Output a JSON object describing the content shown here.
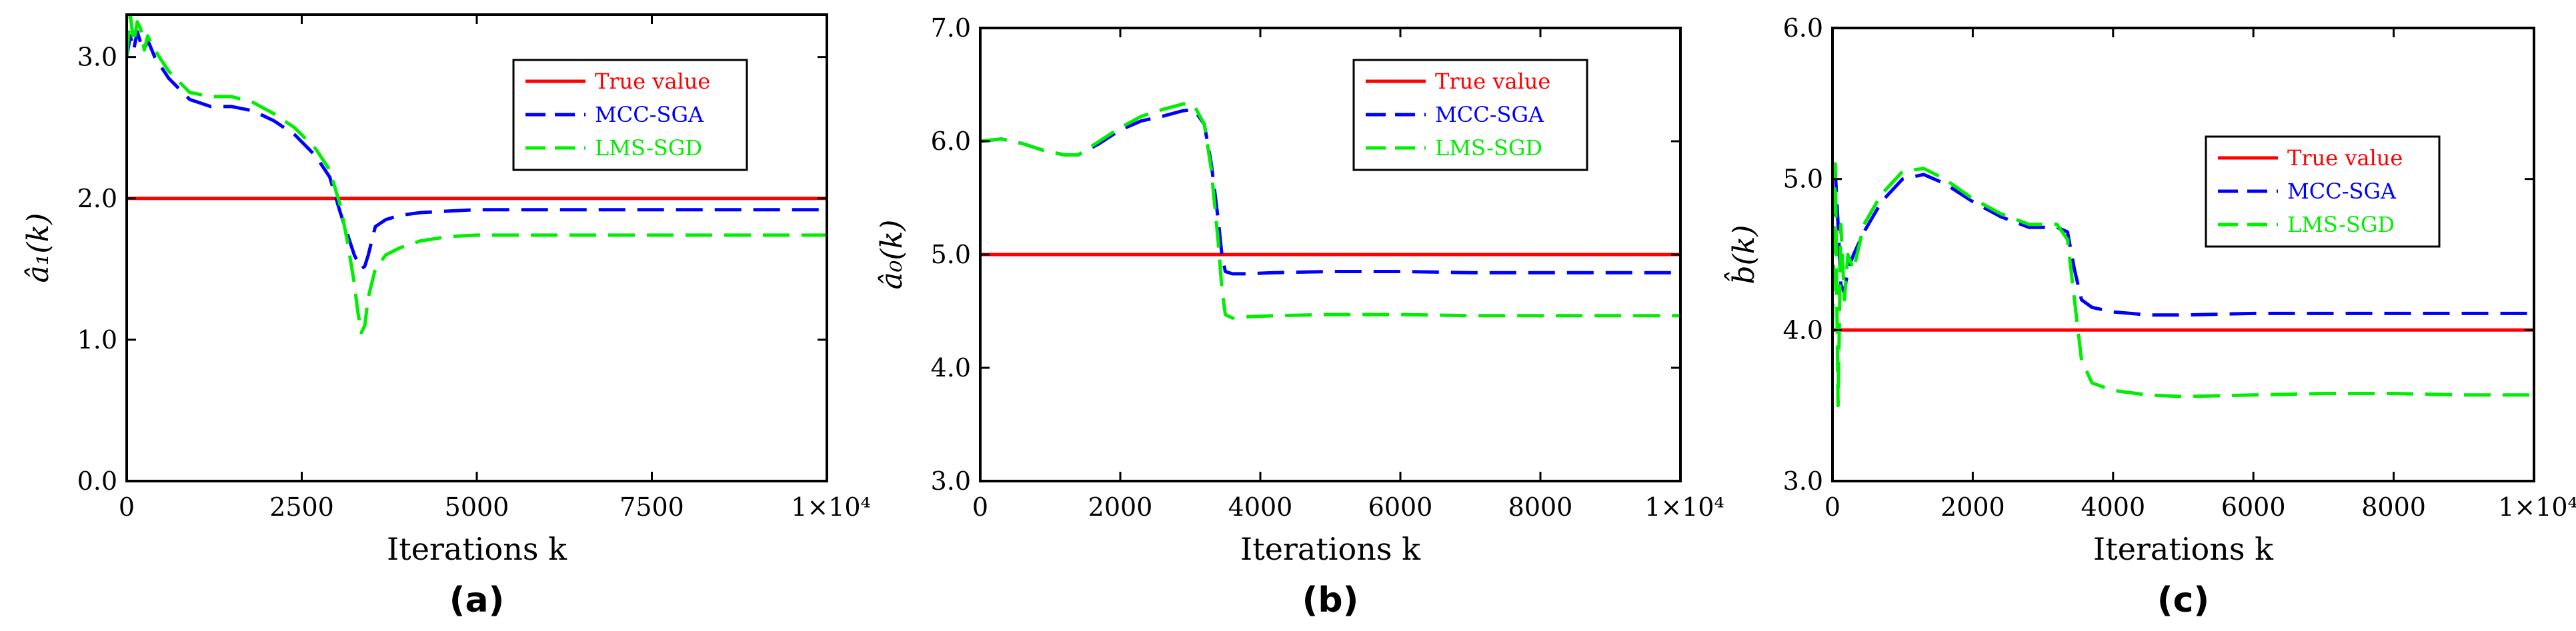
{
  "chart_data": [
    {
      "type": "line",
      "panel_label": "(a)",
      "xlabel": "Iterations k",
      "ylabel": "â₁(k)",
      "xlim": [
        0,
        10000
      ],
      "ylim": [
        0,
        3.3
      ],
      "xticks": [
        0,
        2500,
        5000,
        7500,
        10000
      ],
      "xtick_labels": [
        "0",
        "2500",
        "5000",
        "7500",
        "1×10⁴"
      ],
      "yticks": [
        0,
        1,
        2,
        3
      ],
      "ytick_labels": [
        "0.0",
        "1.0",
        "2.0",
        "3.0"
      ],
      "legend_position": "top-right",
      "series": [
        {
          "name": "True value",
          "color": "#ff0000",
          "dash": "solid",
          "x": [
            0,
            10000
          ],
          "y": [
            2.0,
            2.0
          ]
        },
        {
          "name": "MCC-SGA",
          "color": "#0000ff",
          "dash": "dashed",
          "x": [
            0,
            50,
            100,
            150,
            200,
            250,
            300,
            400,
            600,
            900,
            1200,
            1500,
            1800,
            2100,
            2400,
            2700,
            2900,
            3050,
            3150,
            3250,
            3300,
            3350,
            3400,
            3450,
            3550,
            3700,
            3900,
            4200,
            4600,
            5000,
            6000,
            7000,
            8000,
            9000,
            10000
          ],
          "y": [
            3.0,
            3.15,
            3.05,
            3.18,
            3.1,
            3.05,
            3.12,
            3.0,
            2.85,
            2.7,
            2.65,
            2.65,
            2.62,
            2.55,
            2.45,
            2.3,
            2.15,
            1.9,
            1.75,
            1.6,
            1.55,
            1.5,
            1.52,
            1.6,
            1.8,
            1.85,
            1.88,
            1.9,
            1.91,
            1.92,
            1.92,
            1.92,
            1.92,
            1.92,
            1.92
          ]
        },
        {
          "name": "LMS-SGD",
          "color": "#00ee00",
          "dash": "dashed",
          "x": [
            0,
            50,
            100,
            150,
            200,
            250,
            300,
            400,
            600,
            900,
            1200,
            1500,
            1800,
            2100,
            2400,
            2700,
            2900,
            3050,
            3150,
            3250,
            3300,
            3350,
            3400,
            3450,
            3550,
            3700,
            3900,
            4200,
            4600,
            5000,
            6000,
            7000,
            8000,
            9000,
            10000
          ],
          "y": [
            3.0,
            3.3,
            3.1,
            3.25,
            3.2,
            3.05,
            3.15,
            3.05,
            2.9,
            2.75,
            2.72,
            2.72,
            2.68,
            2.6,
            2.5,
            2.35,
            2.2,
            1.95,
            1.7,
            1.4,
            1.2,
            1.05,
            1.1,
            1.3,
            1.5,
            1.6,
            1.65,
            1.7,
            1.73,
            1.74,
            1.74,
            1.74,
            1.74,
            1.74,
            1.74
          ]
        }
      ]
    },
    {
      "type": "line",
      "panel_label": "(b)",
      "xlabel": "Iterations k",
      "ylabel": "â₀(k)",
      "xlim": [
        0,
        10000
      ],
      "ylim": [
        3.0,
        7.0
      ],
      "xticks": [
        0,
        2000,
        4000,
        6000,
        8000,
        10000
      ],
      "xtick_labels": [
        "0",
        "2000",
        "4000",
        "6000",
        "8000",
        "1×10⁴"
      ],
      "yticks": [
        3,
        4,
        5,
        6,
        7
      ],
      "ytick_labels": [
        "3.0",
        "4.0",
        "5.0",
        "6.0",
        "7.0"
      ],
      "legend_position": "top-right",
      "series": [
        {
          "name": "True value",
          "color": "#ff0000",
          "dash": "solid",
          "x": [
            0,
            10000
          ],
          "y": [
            5.0,
            5.0
          ]
        },
        {
          "name": "MCC-SGA",
          "color": "#0000ff",
          "dash": "dashed",
          "x": [
            0,
            300,
            600,
            900,
            1200,
            1400,
            1700,
            2000,
            2300,
            2600,
            2900,
            3050,
            3200,
            3300,
            3400,
            3450,
            3500,
            3600,
            3800,
            4200,
            5000,
            6000,
            7000,
            8000,
            9000,
            10000
          ],
          "y": [
            6.0,
            6.02,
            5.98,
            5.92,
            5.88,
            5.88,
            5.98,
            6.1,
            6.18,
            6.22,
            6.27,
            6.28,
            6.15,
            5.8,
            5.3,
            5.0,
            4.85,
            4.83,
            4.83,
            4.84,
            4.85,
            4.85,
            4.84,
            4.84,
            4.84,
            4.84
          ]
        },
        {
          "name": "LMS-SGD",
          "color": "#00ee00",
          "dash": "dashed",
          "x": [
            0,
            300,
            600,
            900,
            1200,
            1400,
            1700,
            2000,
            2300,
            2600,
            2900,
            3050,
            3200,
            3300,
            3400,
            3450,
            3500,
            3600,
            3800,
            4200,
            5000,
            6000,
            7000,
            8000,
            9000,
            10000
          ],
          "y": [
            6.0,
            6.02,
            5.98,
            5.92,
            5.88,
            5.88,
            6.0,
            6.12,
            6.22,
            6.28,
            6.33,
            6.32,
            6.15,
            5.75,
            5.1,
            4.7,
            4.47,
            4.44,
            4.45,
            4.46,
            4.47,
            4.47,
            4.46,
            4.46,
            4.46,
            4.46
          ]
        }
      ]
    },
    {
      "type": "line",
      "panel_label": "(c)",
      "xlabel": "Iterations k",
      "ylabel": "b̂(k)",
      "xlim": [
        0,
        10000
      ],
      "ylim": [
        3.0,
        6.0
      ],
      "xticks": [
        0,
        2000,
        4000,
        6000,
        8000,
        10000
      ],
      "xtick_labels": [
        "0",
        "2000",
        "4000",
        "6000",
        "8000",
        "1×10⁴"
      ],
      "yticks": [
        3,
        4,
        5,
        6
      ],
      "ytick_labels": [
        "3.0",
        "4.0",
        "5.0",
        "6.0"
      ],
      "legend_position": "top-right",
      "series": [
        {
          "name": "True value",
          "color": "#ff0000",
          "dash": "solid",
          "x": [
            0,
            10000
          ],
          "y": [
            4.0,
            4.0
          ]
        },
        {
          "name": "MCC-SGA",
          "color": "#0000ff",
          "dash": "dashed",
          "x": [
            0,
            40,
            80,
            120,
            170,
            220,
            300,
            450,
            700,
            1000,
            1300,
            1600,
            2000,
            2400,
            2800,
            3200,
            3350,
            3450,
            3550,
            3700,
            4000,
            4500,
            5000,
            6000,
            7000,
            8000,
            9000,
            10000
          ],
          "y": [
            4.5,
            5.05,
            4.7,
            4.3,
            4.25,
            4.4,
            4.5,
            4.65,
            4.85,
            5.0,
            5.03,
            4.97,
            4.85,
            4.75,
            4.68,
            4.68,
            4.65,
            4.4,
            4.2,
            4.15,
            4.12,
            4.1,
            4.1,
            4.11,
            4.11,
            4.11,
            4.11,
            4.11
          ]
        },
        {
          "name": "LMS-SGD",
          "color": "#00ee00",
          "dash": "dashed",
          "x": [
            0,
            40,
            80,
            120,
            170,
            220,
            300,
            450,
            700,
            1000,
            1300,
            1600,
            2000,
            2400,
            2800,
            3200,
            3350,
            3450,
            3550,
            3700,
            4000,
            4500,
            5000,
            6000,
            7000,
            8000,
            9000,
            10000
          ],
          "y": [
            4.0,
            5.1,
            3.5,
            4.7,
            4.2,
            4.5,
            4.4,
            4.7,
            4.9,
            5.05,
            5.07,
            5.0,
            4.87,
            4.77,
            4.7,
            4.7,
            4.6,
            4.2,
            3.8,
            3.65,
            3.6,
            3.57,
            3.56,
            3.57,
            3.58,
            3.58,
            3.57,
            3.57
          ]
        }
      ]
    }
  ]
}
